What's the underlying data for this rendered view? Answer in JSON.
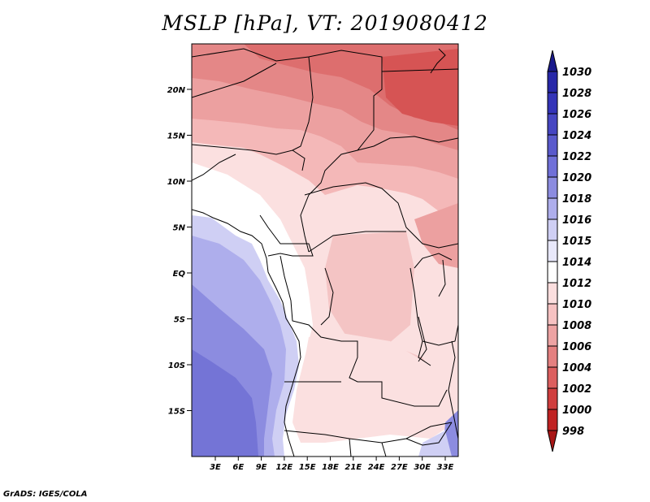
{
  "title": "MSLP [hPa], VT: 2019080412",
  "footer": "GrADS: IGES/COLA",
  "map": {
    "lat_labels": [
      "20N",
      "15N",
      "10N",
      "5N",
      "EQ",
      "5S",
      "10S",
      "15S"
    ],
    "lon_labels": [
      "3E",
      "6E",
      "9E",
      "12E",
      "15E",
      "18E",
      "21E",
      "24E",
      "27E",
      "30E",
      "33E"
    ]
  },
  "colorbar": {
    "levels": [
      "1030",
      "1028",
      "1026",
      "1024",
      "1022",
      "1020",
      "1018",
      "1016",
      "1015",
      "1014",
      "1012",
      "1010",
      "1008",
      "1006",
      "1004",
      "1002",
      "1000",
      "998"
    ],
    "colors": [
      "#1a1a8c",
      "#2727a8",
      "#3434b8",
      "#4646c2",
      "#5a5acc",
      "#7070d8",
      "#8c8ce0",
      "#aeaeec",
      "#cfcff4",
      "#e8e8fa",
      "#ffffff",
      "#fbdede",
      "#f6c2c2",
      "#eda3a3",
      "#e48080",
      "#dc5f5f",
      "#d03e3e",
      "#c02222",
      "#a81515"
    ]
  }
}
